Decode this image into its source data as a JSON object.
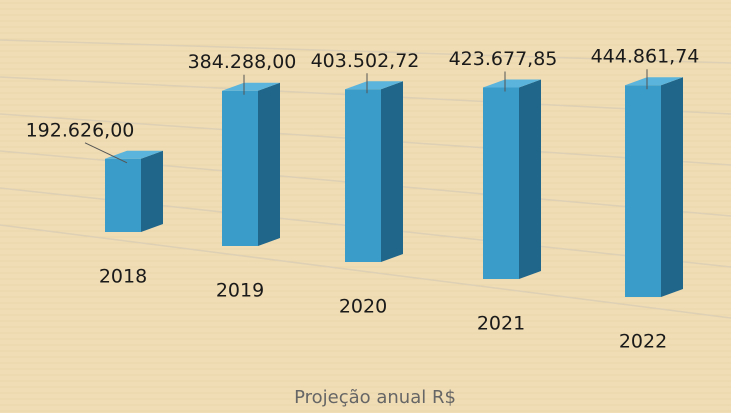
{
  "chart_data": {
    "type": "bar3d",
    "title": "Projeção anual R$",
    "categories": [
      "2018",
      "2019",
      "2020",
      "2021",
      "2022"
    ],
    "values": [
      192626,
      384288,
      403502.72,
      423677.85,
      444861.74
    ],
    "value_labels": [
      "192.626,00",
      "384.288,00",
      "403.502,72",
      "423.677,85",
      "444.861,74"
    ],
    "color": "#3a9cc8",
    "ylim": [
      0,
      500000
    ],
    "yticks": [
      0,
      100000,
      200000,
      300000,
      400000,
      500000
    ],
    "grid": true
  }
}
